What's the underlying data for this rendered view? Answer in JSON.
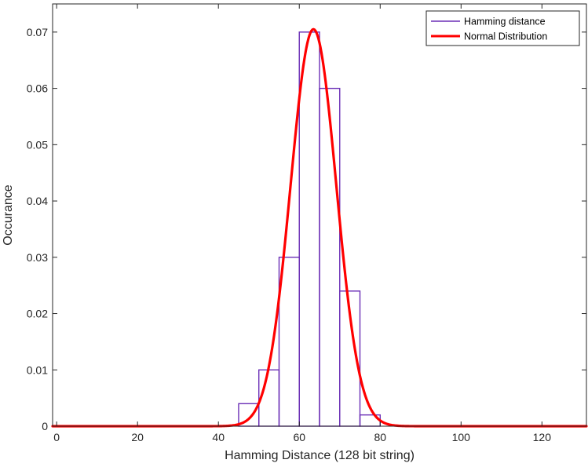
{
  "chart_data": {
    "type": "bar",
    "title": "",
    "xlabel": "Hamming Distance (128 bit string)",
    "ylabel": "Occurance",
    "xlim": [
      -1,
      131
    ],
    "ylim": [
      0,
      0.075
    ],
    "x_ticks": [
      0,
      20,
      40,
      60,
      80,
      100,
      120
    ],
    "x_tick_labels": [
      "0",
      "20",
      "40",
      "60",
      "80",
      "100",
      "120"
    ],
    "y_ticks": [
      0,
      0.01,
      0.02,
      0.03,
      0.04,
      0.05,
      0.06,
      0.07
    ],
    "y_tick_labels": [
      "0",
      "0.01",
      "0.02",
      "0.03",
      "0.04",
      "0.05",
      "0.06",
      "0.07"
    ],
    "grid": false,
    "legend_position": "top-right",
    "series": [
      {
        "name": "Hamming distance",
        "kind": "histogram",
        "color": "#6b2fb6",
        "bin_edges": [
          45,
          50,
          55,
          60,
          65,
          70,
          75,
          80
        ],
        "values": [
          0.004,
          0.01,
          0.03,
          0.07,
          0.06,
          0.024,
          0.002
        ]
      },
      {
        "name": "Normal Distribution",
        "kind": "line",
        "color": "#ff0000",
        "mean": 63.5,
        "std": 5.66,
        "peak": 0.0705
      }
    ]
  }
}
